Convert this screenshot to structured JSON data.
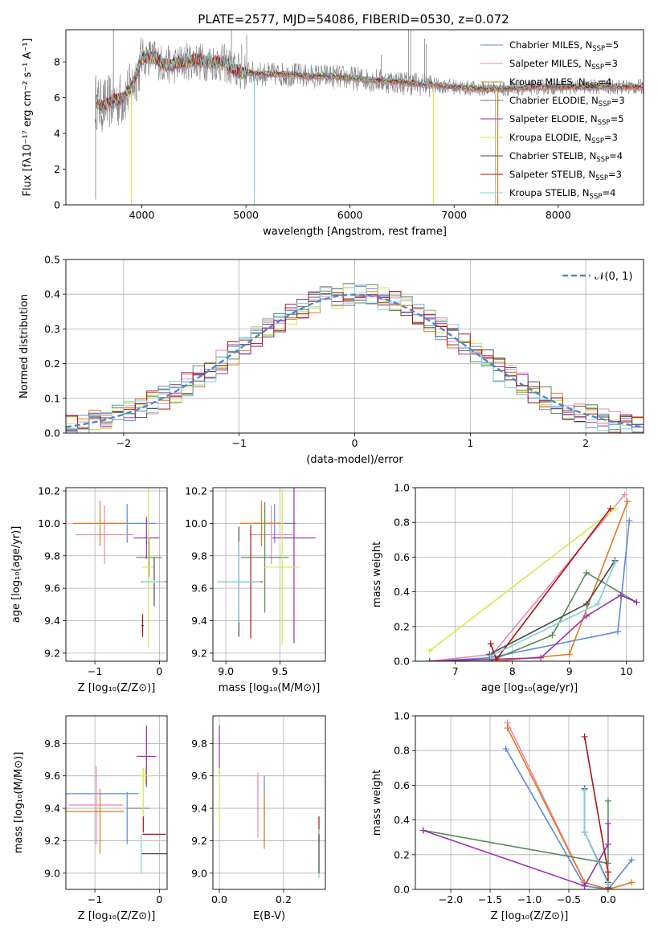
{
  "figure_title": "PLATE=2577, MJD=54086, FIBERID=0530, z=0.072",
  "colors": {
    "chabrier_miles": "#5b8bd9",
    "salpeter_miles": "#e889b0",
    "kroupa_miles": "#e07a1f",
    "chabrier_elodie": "#5a8a5a",
    "salpeter_elodie": "#9a30b0",
    "kroupa_elodie": "#d4e84a",
    "chabrier_stelib": "#4a4a4a",
    "salpeter_stelib": "#b01010",
    "kroupa_stelib": "#7fd0d8",
    "observed": "#808080",
    "gaussian": "#4a88d0",
    "grid": "#b0b0b0"
  },
  "chart_data": [
    {
      "id": "spectrum",
      "type": "line",
      "title": "PLATE=2577, MJD=54086, FIBERID=0530, z=0.072",
      "xlabel": "wavelength [Angstrom, rest frame]",
      "ylabel": "Flux [fλ10⁻¹⁷ erg cm⁻² s⁻¹ A⁻¹]",
      "xlim": [
        3270,
        8820
      ],
      "ylim": [
        0,
        9.8
      ],
      "xticks": [
        4000,
        5000,
        6000,
        7000,
        8000
      ],
      "yticks": [
        0,
        2,
        4,
        6,
        8
      ],
      "grid": false,
      "legend_position": "upper right",
      "legend": [
        {
          "label": "Chabrier MILES, N",
          "sub": "SSP",
          "suffix": "=5",
          "color": "#5b8bd9"
        },
        {
          "label": "Salpeter MILES, N",
          "sub": "SSP",
          "suffix": "=3",
          "color": "#e889b0"
        },
        {
          "label": "Kroupa MILES, N",
          "sub": "SSP",
          "suffix": "=4",
          "color": "#e07a1f"
        },
        {
          "label": "Chabrier ELODIE, N",
          "sub": "SSP",
          "suffix": "=3",
          "color": "#5a8a5a"
        },
        {
          "label": "Salpeter ELODIE, N",
          "sub": "SSP",
          "suffix": "=5",
          "color": "#9a30b0"
        },
        {
          "label": "Kroupa ELODIE, N",
          "sub": "SSP",
          "suffix": "=3",
          "color": "#d4e84a"
        },
        {
          "label": "Chabrier STELIB, N",
          "sub": "SSP",
          "suffix": "=4",
          "color": "#4a4a4a"
        },
        {
          "label": "Salpeter STELIB, N",
          "sub": "SSP",
          "suffix": "=3",
          "color": "#b01010"
        },
        {
          "label": "Kroupa STELIB, N",
          "sub": "SSP",
          "suffix": "=4",
          "color": "#7fd0d8"
        }
      ],
      "continuum": {
        "x": [
          3550,
          3600,
          3650,
          3700,
          3800,
          3900,
          4000,
          4100,
          4200,
          4300,
          4400,
          4500,
          4600,
          4700,
          4800,
          4900,
          5000,
          5200,
          5400,
          5600,
          5800,
          6000,
          6200,
          6400,
          6600,
          6800,
          7000,
          7200,
          7400,
          7600,
          7800,
          8000,
          8200,
          8400,
          8600,
          8800
        ],
        "y": [
          5.9,
          5.5,
          5.6,
          5.8,
          5.9,
          6.5,
          8.2,
          8.3,
          7.9,
          7.8,
          8.0,
          8.1,
          8.0,
          8.0,
          7.9,
          7.5,
          7.4,
          7.3,
          7.3,
          7.2,
          7.2,
          7.1,
          7.0,
          6.9,
          6.8,
          6.7,
          6.6,
          6.5,
          6.5,
          6.5,
          6.6,
          6.6,
          6.6,
          6.6,
          6.6,
          6.6
        ]
      },
      "emission_lines": [
        {
          "x": 3727,
          "y": 9.8
        },
        {
          "x": 4861,
          "y": 9.8
        },
        {
          "x": 4959,
          "y": 9.0
        },
        {
          "x": 5007,
          "y": 9.5
        },
        {
          "x": 6300,
          "y": 8.4
        },
        {
          "x": 6563,
          "y": 9.8
        },
        {
          "x": 6583,
          "y": 9.8
        },
        {
          "x": 6717,
          "y": 9.3
        },
        {
          "x": 6731,
          "y": 9.0
        }
      ],
      "model_drops": [
        {
          "x": 3900,
          "color": "#d4e84a"
        },
        {
          "x": 5080,
          "color": "#7fd0d8"
        },
        {
          "x": 6800,
          "color": "#d4e84a"
        },
        {
          "x": 7420,
          "color": "#e07a1f"
        }
      ]
    },
    {
      "id": "residual_hist",
      "type": "histogram",
      "xlabel": "(data-model)/error",
      "ylabel": "Normed distribution",
      "xlim": [
        -2.5,
        2.5
      ],
      "ylim": [
        0,
        0.5
      ],
      "xticks": [
        -2,
        -1,
        0,
        1,
        2
      ],
      "yticks": [
        0.0,
        0.1,
        0.2,
        0.3,
        0.4,
        0.5
      ],
      "grid": true,
      "legend_position": "upper right",
      "gaussian_label": "𝒩(0, 1)",
      "bin_width": 0.1,
      "bin_start": -2.5
    },
    {
      "id": "age_vs_Z",
      "type": "errorbar",
      "xlabel": "Z [log₁₀(Z/Z⊙)]",
      "ylabel": "age  [log₁₀(age/yr)]",
      "xlim": [
        -1.45,
        0.12
      ],
      "ylim": [
        9.15,
        10.22
      ],
      "xticks": [
        -1,
        0
      ],
      "yticks": [
        9.2,
        9.4,
        9.6,
        9.8,
        10.0,
        10.2
      ],
      "grid": true,
      "points": [
        {
          "x": -0.5,
          "xerr": 0.45,
          "y": 10.0,
          "yerr": 0.12,
          "color": "#5b8bd9"
        },
        {
          "x": -0.85,
          "xerr": 0.45,
          "y": 9.93,
          "yerr": 0.18,
          "color": "#e889b0"
        },
        {
          "x": -0.92,
          "xerr": 0.42,
          "y": 10.0,
          "yerr": 0.14,
          "color": "#e07a1f"
        },
        {
          "x": -0.16,
          "xerr": 0.2,
          "y": 9.79,
          "yerr": 0.12,
          "color": "#5a8a5a"
        },
        {
          "x": -0.2,
          "xerr": 0.2,
          "y": 9.91,
          "yerr": 0.13,
          "color": "#9a30b0"
        },
        {
          "x": -0.17,
          "xerr": 0.1,
          "y": 9.73,
          "yerr": 0.5,
          "color": "#d4e84a"
        },
        {
          "x": -0.08,
          "xerr": 0.2,
          "y": 9.64,
          "yerr": 0.15,
          "color": "#4a4a4a"
        },
        {
          "x": -0.26,
          "xerr": 0.02,
          "y": 9.37,
          "yerr": 0.07,
          "color": "#b01010"
        },
        {
          "x": -0.08,
          "xerr": 0.18,
          "y": 9.64,
          "yerr": 0.01,
          "color": "#7fd0d8"
        }
      ]
    },
    {
      "id": "age_vs_mass",
      "type": "errorbar",
      "xlabel": "mass [log₁₀(M/M⊙)]",
      "ylabel": "",
      "xlim": [
        8.88,
        9.92
      ],
      "ylim": [
        9.15,
        10.22
      ],
      "xticks": [
        9.0,
        9.5
      ],
      "yticks": [
        9.2,
        9.4,
        9.6,
        9.8,
        10.0,
        10.2
      ],
      "grid": true,
      "points": [
        {
          "x": 9.45,
          "xerr": 0.2,
          "y": 10.0,
          "yerr": 0.12,
          "color": "#5b8bd9"
        },
        {
          "x": 9.42,
          "xerr": 0.2,
          "y": 9.93,
          "yerr": 0.18,
          "color": "#e889b0"
        },
        {
          "x": 9.33,
          "xerr": 0.2,
          "y": 10.0,
          "yerr": 0.14,
          "color": "#e07a1f"
        },
        {
          "x": 9.36,
          "xerr": 0.22,
          "y": 9.79,
          "yerr": 0.34,
          "color": "#5a8a5a"
        },
        {
          "x": 9.63,
          "xerr": 0.2,
          "y": 9.91,
          "yerr": 0.65,
          "color": "#9a30b0"
        },
        {
          "x": 9.52,
          "xerr": 0.17,
          "y": 9.73,
          "yerr": 0.48,
          "color": "#d4e84a"
        },
        {
          "x": 9.12,
          "xerr": 0.2,
          "y": 9.64,
          "yerr": 0.34,
          "color": "#4a4a4a"
        },
        {
          "x": 9.23,
          "xerr": 0.11,
          "y": 9.64,
          "yerr": 0.35,
          "color": "#b01010"
        },
        {
          "x": 9.12,
          "xerr": 0.2,
          "y": 9.64,
          "yerr": 0.25,
          "color": "#7fd0d8"
        }
      ]
    },
    {
      "id": "mass_weight_vs_age",
      "type": "line",
      "xlabel": "age  [log₁₀(age/yr)]",
      "ylabel": "mass weight",
      "xlim": [
        6.3,
        10.3
      ],
      "ylim": [
        0,
        1.0
      ],
      "xticks": [
        7,
        8,
        9,
        10
      ],
      "yticks": [
        0.0,
        0.2,
        0.4,
        0.6,
        0.8,
        1.0
      ],
      "grid": true,
      "series": [
        {
          "color": "#5b8bd9",
          "x": [
            10.05,
            9.85,
            7.6,
            6.55
          ],
          "y": [
            0.81,
            0.17,
            0.02,
            0.0
          ]
        },
        {
          "color": "#e889b0",
          "x": [
            9.97,
            7.65,
            6.55
          ],
          "y": [
            0.96,
            0.04,
            0.0
          ]
        },
        {
          "color": "#e07a1f",
          "x": [
            10.02,
            9.0,
            7.7,
            6.55
          ],
          "y": [
            0.92,
            0.04,
            0.0,
            0.0
          ]
        },
        {
          "color": "#5a8a5a",
          "x": [
            10.18,
            9.3,
            8.7,
            7.6
          ],
          "y": [
            0.34,
            0.51,
            0.15,
            0.0
          ]
        },
        {
          "color": "#9a30b0",
          "x": [
            10.18,
            9.9,
            9.3,
            8.5,
            6.55
          ],
          "y": [
            0.34,
            0.38,
            0.26,
            0.02,
            0.0
          ]
        },
        {
          "color": "#d4e84a",
          "x": [
            9.8,
            6.55
          ],
          "y": [
            0.88,
            0.06
          ]
        },
        {
          "color": "#4a4a4a",
          "x": [
            9.8,
            9.3,
            7.6
          ],
          "y": [
            0.58,
            0.33,
            0.04
          ]
        },
        {
          "color": "#b01010",
          "x": [
            9.72,
            7.72,
            7.62
          ],
          "y": [
            0.88,
            0.01,
            0.1
          ]
        },
        {
          "color": "#7fd0d8",
          "x": [
            9.8,
            9.5,
            7.62
          ],
          "y": [
            0.57,
            0.33,
            0.03
          ]
        }
      ]
    },
    {
      "id": "mass_vs_Z",
      "type": "errorbar",
      "xlabel": "Z [log₁₀(Z/Z⊙)]",
      "ylabel": "mass [log₁₀(M/M⊙)]",
      "xlim": [
        -1.45,
        0.12
      ],
      "ylim": [
        8.9,
        9.97
      ],
      "xticks": [
        -1,
        0
      ],
      "yticks": [
        9.0,
        9.2,
        9.4,
        9.6,
        9.8
      ],
      "grid": true,
      "points": [
        {
          "x": -0.9,
          "xerr": 0.58,
          "y": 9.49,
          "yerr": 0.0,
          "color": "#5b8bd9"
        },
        {
          "x": -0.5,
          "xerr": 0.0,
          "y": 9.34,
          "yerr": 0.16,
          "color": "#5b8bd9"
        },
        {
          "x": -0.98,
          "xerr": 0.42,
          "y": 9.42,
          "yerr": 0.24,
          "color": "#e889b0"
        },
        {
          "x": -1.0,
          "xerr": 0.45,
          "y": 9.38,
          "yerr": 0.0,
          "color": "#e07a1f"
        },
        {
          "x": -0.92,
          "xerr": 0.0,
          "y": 9.32,
          "yerr": 0.2,
          "color": "#e07a1f"
        },
        {
          "x": -0.32,
          "xerr": 0.17,
          "y": 9.4,
          "yerr": 0.0,
          "color": "#5a8a5a"
        },
        {
          "x": -0.2,
          "xerr": 0.15,
          "y": 9.72,
          "yerr": 0.19,
          "color": "#9a30b0"
        },
        {
          "x": -0.22,
          "xerr": 0.1,
          "y": 9.6,
          "yerr": 0.05,
          "color": "#d4e84a"
        },
        {
          "x": -0.25,
          "xerr": 0.0,
          "y": 9.5,
          "yerr": 0.15,
          "color": "#d4e84a"
        },
        {
          "x": -0.08,
          "xerr": 0.2,
          "y": 9.12,
          "yerr": 0.0,
          "color": "#4a4a4a"
        },
        {
          "x": -0.08,
          "xerr": 0.18,
          "y": 9.24,
          "yerr": 0.0,
          "color": "#b01010"
        },
        {
          "x": -0.25,
          "xerr": 0.0,
          "y": 9.3,
          "yerr": 0.05,
          "color": "#b01010"
        },
        {
          "x": -0.28,
          "xerr": 0.0,
          "y": 9.12,
          "yerr": 0.12,
          "color": "#7fd0d8"
        }
      ]
    },
    {
      "id": "mass_vs_ebv",
      "type": "errorbar",
      "xlabel": "E(B-V)",
      "ylabel": "",
      "xlim": [
        -0.02,
        0.33
      ],
      "ylim": [
        8.9,
        9.97
      ],
      "xticks": [
        0.0,
        0.2
      ],
      "yticks": [
        9.0,
        9.2,
        9.4,
        9.6,
        9.8
      ],
      "grid": true,
      "points": [
        {
          "x": 0.0,
          "xerr": 0.0,
          "y": 9.76,
          "yerr": 0.15,
          "color": "#9a30b0"
        },
        {
          "x": 0.0,
          "xerr": 0.0,
          "y": 9.47,
          "yerr": 0.18,
          "color": "#d4e84a"
        },
        {
          "x": 0.12,
          "xerr": 0.0,
          "y": 9.42,
          "yerr": 0.2,
          "color": "#e889b0"
        },
        {
          "x": 0.14,
          "xerr": 0.0,
          "y": 9.4,
          "yerr": 0.2,
          "color": "#5b8bd9"
        },
        {
          "x": 0.14,
          "xerr": 0.0,
          "y": 9.33,
          "yerr": 0.18,
          "color": "#e07a1f"
        },
        {
          "x": 0.31,
          "xerr": 0.0,
          "y": 9.27,
          "yerr": 0.08,
          "color": "#b01010"
        },
        {
          "x": 0.31,
          "xerr": 0.0,
          "y": 9.12,
          "yerr": 0.15,
          "color": "#7fd0d8"
        },
        {
          "x": 0.31,
          "xerr": 0.0,
          "y": 9.12,
          "yerr": 0.12,
          "color": "#4a4a4a"
        }
      ]
    },
    {
      "id": "mass_weight_vs_Z",
      "type": "line",
      "xlabel": "Z [log₁₀(Z/Z⊙)]",
      "ylabel": "mass weight",
      "xlim": [
        -2.45,
        0.45
      ],
      "ylim": [
        0,
        1.0
      ],
      "xticks": [
        -2.0,
        -1.5,
        -1.0,
        -0.5,
        0.0
      ],
      "yticks": [
        0.0,
        0.2,
        0.4,
        0.6,
        0.8,
        1.0
      ],
      "grid": true,
      "series": [
        {
          "color": "#5b8bd9",
          "x": [
            -1.3,
            -0.3,
            0.0,
            0.3
          ],
          "y": [
            0.81,
            0.02,
            0.0,
            0.17
          ]
        },
        {
          "color": "#e889b0",
          "x": [
            -1.28,
            -0.3,
            0.0
          ],
          "y": [
            0.96,
            0.04,
            0.0
          ]
        },
        {
          "color": "#e07a1f",
          "x": [
            -1.28,
            -0.3,
            0.0,
            0.3
          ],
          "y": [
            0.93,
            0.04,
            0.0,
            0.04
          ]
        },
        {
          "color": "#5a8a5a",
          "x": [
            -2.35,
            0.0,
            0.0
          ],
          "y": [
            0.34,
            0.15,
            0.51
          ]
        },
        {
          "color": "#9a30b0",
          "x": [
            -2.35,
            -0.3,
            0.0,
            0.0
          ],
          "y": [
            0.34,
            0.02,
            0.26,
            0.38
          ]
        },
        {
          "color": "#d4e84a",
          "x": [
            -0.3,
            -0.3
          ],
          "y": [
            0.57,
            0.33
          ]
        },
        {
          "color": "#4a4a4a",
          "x": [
            -0.3,
            -0.3,
            0.0
          ],
          "y": [
            0.58,
            0.33,
            0.04
          ]
        },
        {
          "color": "#b01010",
          "x": [
            -0.3,
            0.0,
            0.0
          ],
          "y": [
            0.88,
            0.1,
            0.01
          ]
        },
        {
          "color": "#7fd0d8",
          "x": [
            -0.3,
            -0.3,
            0.0
          ],
          "y": [
            0.57,
            0.33,
            0.03
          ]
        }
      ]
    }
  ]
}
